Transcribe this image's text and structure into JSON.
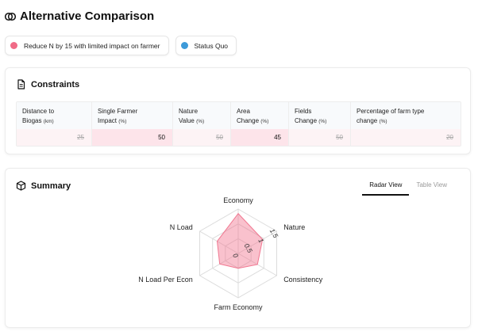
{
  "page": {
    "title": "Alternative Comparison"
  },
  "legend": [
    {
      "label": "Reduce N by 15 with limited impact on farmer",
      "color": "#f06b87"
    },
    {
      "label": "Status Quo",
      "color": "#3d9ad9"
    }
  ],
  "constraints": {
    "title": "Constraints",
    "columns": [
      {
        "line1": "Distance to",
        "line2": "Biogas",
        "unit": "(km)",
        "value": "25",
        "active": false
      },
      {
        "line1": "Single Farmer",
        "line2": "Impact",
        "unit": "(%)",
        "value": "50",
        "active": true
      },
      {
        "line1": "Nature",
        "line2": "Value",
        "unit": "(%)",
        "value": "50",
        "active": false
      },
      {
        "line1": "Area",
        "line2": "Change",
        "unit": "(%)",
        "value": "45",
        "active": true
      },
      {
        "line1": "Fields",
        "line2": "Change",
        "unit": "(%)",
        "value": "50",
        "active": false
      },
      {
        "line1": "Percentage of farm type",
        "line2": "change",
        "unit": "(%)",
        "value": "20",
        "active": false
      }
    ]
  },
  "summary": {
    "title": "Summary",
    "tabs": [
      {
        "label": "Radar View",
        "active": true
      },
      {
        "label": "Table View",
        "active": false
      }
    ]
  },
  "chart_data": {
    "type": "radar",
    "axes": [
      "Economy",
      "Nature",
      "Consistency",
      "Farm Economy",
      "N Load Per Econ",
      "N Load"
    ],
    "ticks": [
      "0",
      "0.5",
      "1",
      "1.5"
    ],
    "rmax": 1.5,
    "series": [
      {
        "values": [
          1.35,
          0.95,
          0.75,
          0.5,
          0.72,
          0.82
        ],
        "color": "#f06b87"
      }
    ]
  }
}
